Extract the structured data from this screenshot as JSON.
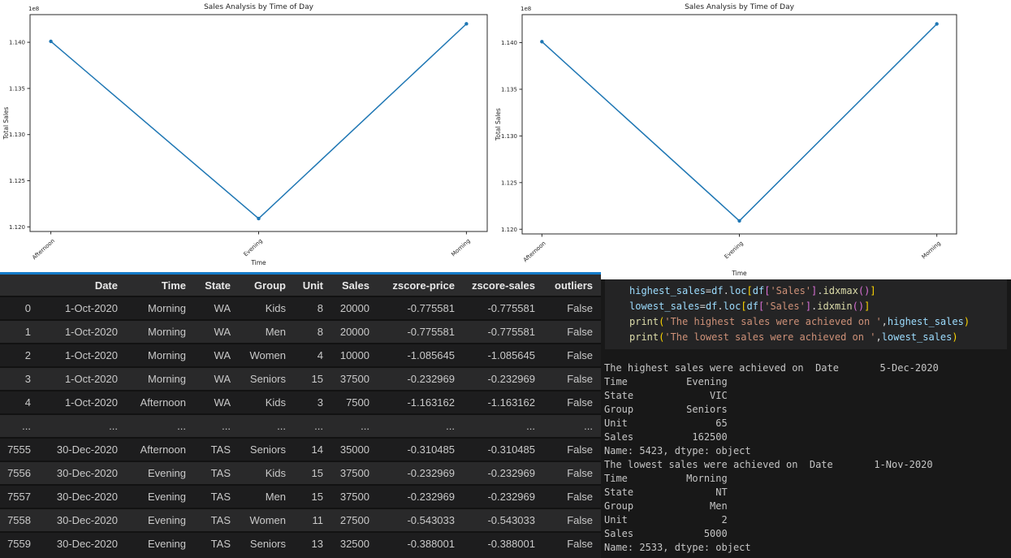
{
  "chart_data": [
    {
      "type": "line",
      "title": "Sales Analysis by Time of Day",
      "xlabel": "Time",
      "ylabel": "Total Sales",
      "offset_text": "1e8",
      "categories": [
        "Afternoon",
        "Evening",
        "Morning"
      ],
      "values": [
        114010000,
        112090000,
        114200000
      ],
      "ylim": [
        111950000,
        114300000
      ],
      "yticks": [
        112000000,
        112500000,
        113000000,
        113500000,
        114000000
      ],
      "ytick_labels": [
        "1.120",
        "1.125",
        "1.130",
        "1.135",
        "1.140"
      ],
      "grid": false,
      "legend": null,
      "line_color": "#1f77b4"
    },
    {
      "type": "line",
      "title": "Sales Analysis by Time of Day",
      "xlabel": "Time",
      "ylabel": "Total Sales",
      "offset_text": "1e8",
      "categories": [
        "Afternoon",
        "Evening",
        "Morning"
      ],
      "values": [
        114010000,
        112090000,
        114200000
      ],
      "ylim": [
        111950000,
        114300000
      ],
      "yticks": [
        112000000,
        112500000,
        113000000,
        113500000,
        114000000
      ],
      "ytick_labels": [
        "1.120",
        "1.125",
        "1.130",
        "1.135",
        "1.140"
      ],
      "grid": false,
      "legend": null,
      "line_color": "#1f77b4"
    }
  ],
  "table": {
    "columns": [
      "",
      "Date",
      "Time",
      "State",
      "Group",
      "Unit",
      "Sales",
      "zscore-price",
      "zscore-sales",
      "outliers"
    ],
    "rows": [
      [
        "0",
        "1-Oct-2020",
        "Morning",
        "WA",
        "Kids",
        "8",
        "20000",
        "-0.775581",
        "-0.775581",
        "False"
      ],
      [
        "1",
        "1-Oct-2020",
        "Morning",
        "WA",
        "Men",
        "8",
        "20000",
        "-0.775581",
        "-0.775581",
        "False"
      ],
      [
        "2",
        "1-Oct-2020",
        "Morning",
        "WA",
        "Women",
        "4",
        "10000",
        "-1.085645",
        "-1.085645",
        "False"
      ],
      [
        "3",
        "1-Oct-2020",
        "Morning",
        "WA",
        "Seniors",
        "15",
        "37500",
        "-0.232969",
        "-0.232969",
        "False"
      ],
      [
        "4",
        "1-Oct-2020",
        "Afternoon",
        "WA",
        "Kids",
        "3",
        "7500",
        "-1.163162",
        "-1.163162",
        "False"
      ],
      [
        "...",
        "...",
        "...",
        "...",
        "...",
        "...",
        "...",
        "...",
        "...",
        "..."
      ],
      [
        "7555",
        "30-Dec-2020",
        "Afternoon",
        "TAS",
        "Seniors",
        "14",
        "35000",
        "-0.310485",
        "-0.310485",
        "False"
      ],
      [
        "7556",
        "30-Dec-2020",
        "Evening",
        "TAS",
        "Kids",
        "15",
        "37500",
        "-0.232969",
        "-0.232969",
        "False"
      ],
      [
        "7557",
        "30-Dec-2020",
        "Evening",
        "TAS",
        "Men",
        "15",
        "37500",
        "-0.232969",
        "-0.232969",
        "False"
      ],
      [
        "7558",
        "30-Dec-2020",
        "Evening",
        "TAS",
        "Women",
        "11",
        "27500",
        "-0.543033",
        "-0.543033",
        "False"
      ],
      [
        "7559",
        "30-Dec-2020",
        "Evening",
        "TAS",
        "Seniors",
        "13",
        "32500",
        "-0.388001",
        "-0.388001",
        "False"
      ]
    ]
  },
  "code": {
    "lines": [
      [
        [
          "var",
          "highest_sales"
        ],
        [
          "op",
          "="
        ],
        [
          "var",
          "df"
        ],
        [
          "op",
          "."
        ],
        [
          "var",
          "loc"
        ],
        [
          "b1",
          "["
        ],
        [
          "var",
          "df"
        ],
        [
          "b2",
          "["
        ],
        [
          "str",
          "'Sales'"
        ],
        [
          "b2",
          "]"
        ],
        [
          "op",
          "."
        ],
        [
          "fn",
          "idxmax"
        ],
        [
          "b2",
          "("
        ],
        [
          "b2",
          ")"
        ],
        [
          "b1",
          "]"
        ]
      ],
      [
        [
          "var",
          "lowest_sales"
        ],
        [
          "op",
          "="
        ],
        [
          "var",
          "df"
        ],
        [
          "op",
          "."
        ],
        [
          "var",
          "loc"
        ],
        [
          "b1",
          "["
        ],
        [
          "var",
          "df"
        ],
        [
          "b2",
          "["
        ],
        [
          "str",
          "'Sales'"
        ],
        [
          "b2",
          "]"
        ],
        [
          "op",
          "."
        ],
        [
          "fn",
          "idxmin"
        ],
        [
          "b2",
          "("
        ],
        [
          "b2",
          ")"
        ],
        [
          "b1",
          "]"
        ]
      ],
      [
        [
          "fn",
          "print"
        ],
        [
          "b1",
          "("
        ],
        [
          "str",
          "'The highest sales were achieved on '"
        ],
        [
          "op",
          ","
        ],
        [
          "var",
          "highest_sales"
        ],
        [
          "b1",
          ")"
        ]
      ],
      [
        [
          "fn",
          "print"
        ],
        [
          "b1",
          "("
        ],
        [
          "str",
          "'The lowest sales were achieved on '"
        ],
        [
          "op",
          ","
        ],
        [
          "var",
          "lowest_sales"
        ],
        [
          "b1",
          ")"
        ]
      ]
    ]
  },
  "output": {
    "lines": [
      "The highest sales were achieved on  Date       5-Dec-2020",
      "Time          Evening",
      "State             VIC",
      "Group         Seniors",
      "Unit               65",
      "Sales          162500",
      "Name: 5423, dtype: object",
      "The lowest sales were achieved on  Date       1-Nov-2020",
      "Time          Morning",
      "State              NT",
      "Group             Men",
      "Unit                2",
      "Sales            5000",
      "Name: 2533, dtype: object"
    ]
  },
  "colors": {
    "accent_blue_border": "#147bc9",
    "chart_line": "#1f77b4",
    "table_header_bg": "#2c2c2d",
    "table_row_dark": "#1d1d1e",
    "table_row_light": "#29292a",
    "code_bg": "#242425",
    "panel_bg": "#181818"
  }
}
